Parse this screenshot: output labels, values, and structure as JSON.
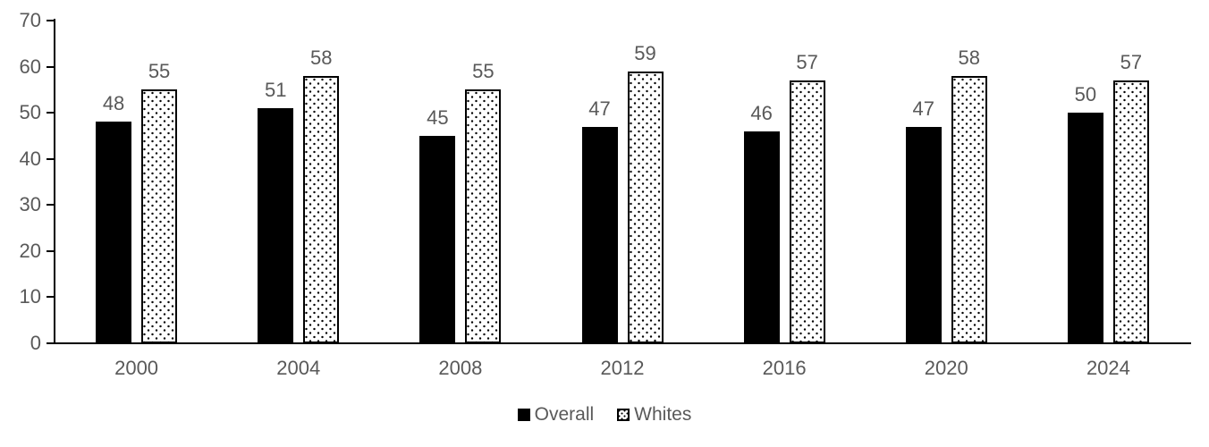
{
  "chart_data": {
    "type": "bar",
    "title": "",
    "xlabel": "",
    "ylabel": "",
    "categories": [
      "2000",
      "2004",
      "2008",
      "2012",
      "2016",
      "2020",
      "2024"
    ],
    "series": [
      {
        "name": "Overall",
        "pattern": "solid",
        "color": "#000000",
        "values": [
          48,
          51,
          45,
          47,
          46,
          47,
          50
        ]
      },
      {
        "name": "Whites",
        "pattern": "dotted",
        "color": "#ffffff",
        "values": [
          55,
          58,
          55,
          59,
          57,
          58,
          57
        ]
      }
    ],
    "ylim": [
      0,
      70
    ],
    "yticks": [
      0,
      10,
      20,
      30,
      40,
      50,
      60,
      70
    ],
    "grid": false,
    "data_labels": true,
    "legend_position": "bottom",
    "text_color": "#595959",
    "axis_color": "#000000"
  }
}
